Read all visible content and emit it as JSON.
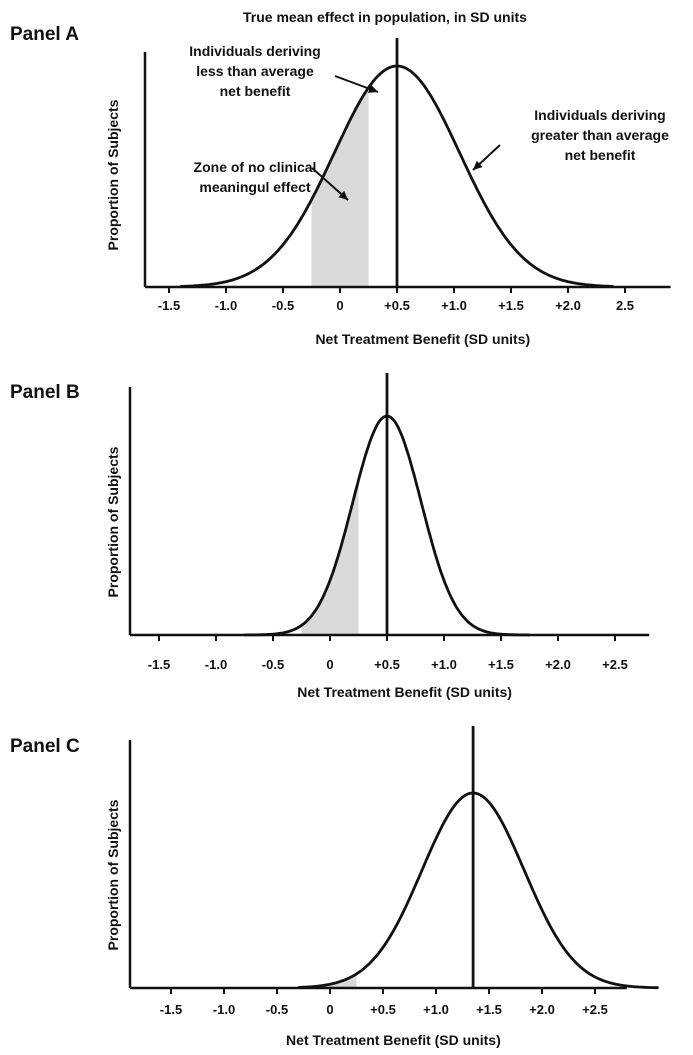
{
  "figure": {
    "top_annotation": "True mean effect in population, in SD units"
  },
  "chart_data": [
    {
      "type": "line",
      "panel": "Panel A",
      "xlabel": "Net Treatment Benefit (SD units)",
      "ylabel": "Proportion of Subjects",
      "xlim": [
        -1.7,
        2.9
      ],
      "tick_values": [
        -1.5,
        -1.0,
        -0.5,
        0,
        0.5,
        1.0,
        1.5,
        2.0,
        2.5
      ],
      "tick_labels": [
        "-1.5",
        "-1.0",
        "-0.5",
        "0",
        "+0.5",
        "+1.0",
        "+1.5",
        "+2.0",
        "2.5"
      ],
      "distribution": {
        "shape": "normal",
        "mean": 0.5,
        "sd": 0.55,
        "x_range": [
          -1.4,
          2.4
        ]
      },
      "mean_line_x": 0.5,
      "shaded_zone_x": [
        -0.25,
        0.25
      ],
      "annotations": [
        {
          "text": [
            "Individuals deriving",
            "less than average",
            "net benefit"
          ]
        },
        {
          "text": [
            "Zone of no clinical",
            "meaningul effect"
          ]
        },
        {
          "text": [
            "Individuals deriving",
            "greater than average",
            "net benefit"
          ]
        }
      ]
    },
    {
      "type": "line",
      "panel": "Panel B",
      "xlabel": "Net Treatment Benefit (SD units)",
      "ylabel": "Proportion of Subjects",
      "xlim": [
        -1.7,
        2.8
      ],
      "tick_values": [
        -1.5,
        -1.0,
        -0.5,
        0,
        0.5,
        1.0,
        1.5,
        2.0,
        2.5
      ],
      "tick_labels": [
        "-1.5",
        "-1.0",
        "-0.5",
        "0",
        "+0.5",
        "+1.0",
        "+1.5",
        "+2.0",
        "+2.5"
      ],
      "distribution": {
        "shape": "normal",
        "mean": 0.5,
        "sd": 0.3,
        "x_range": [
          -0.75,
          1.75
        ]
      },
      "mean_line_x": 0.5,
      "shaded_zone_x": [
        -0.25,
        0.25
      ],
      "annotations": []
    },
    {
      "type": "line",
      "panel": "Panel C",
      "xlabel": "Net Treatment Benefit (SD units)",
      "ylabel": "Proportion of Subjects",
      "xlim": [
        -1.7,
        2.8
      ],
      "tick_values": [
        -1.5,
        -1.0,
        -0.5,
        0,
        0.5,
        1.0,
        1.5,
        2.0,
        2.5
      ],
      "tick_labels": [
        "-1.5",
        "-1.0",
        "-0.5",
        "0",
        "+0.5",
        "+1.0",
        "+1.5",
        "+2.0",
        "+2.5"
      ],
      "distribution": {
        "shape": "normal",
        "mean": 1.35,
        "sd": 0.48,
        "x_range": [
          -0.3,
          3.1
        ]
      },
      "mean_line_x": 1.35,
      "shaded_zone_x": [
        -0.25,
        0.25
      ],
      "annotations": []
    }
  ]
}
